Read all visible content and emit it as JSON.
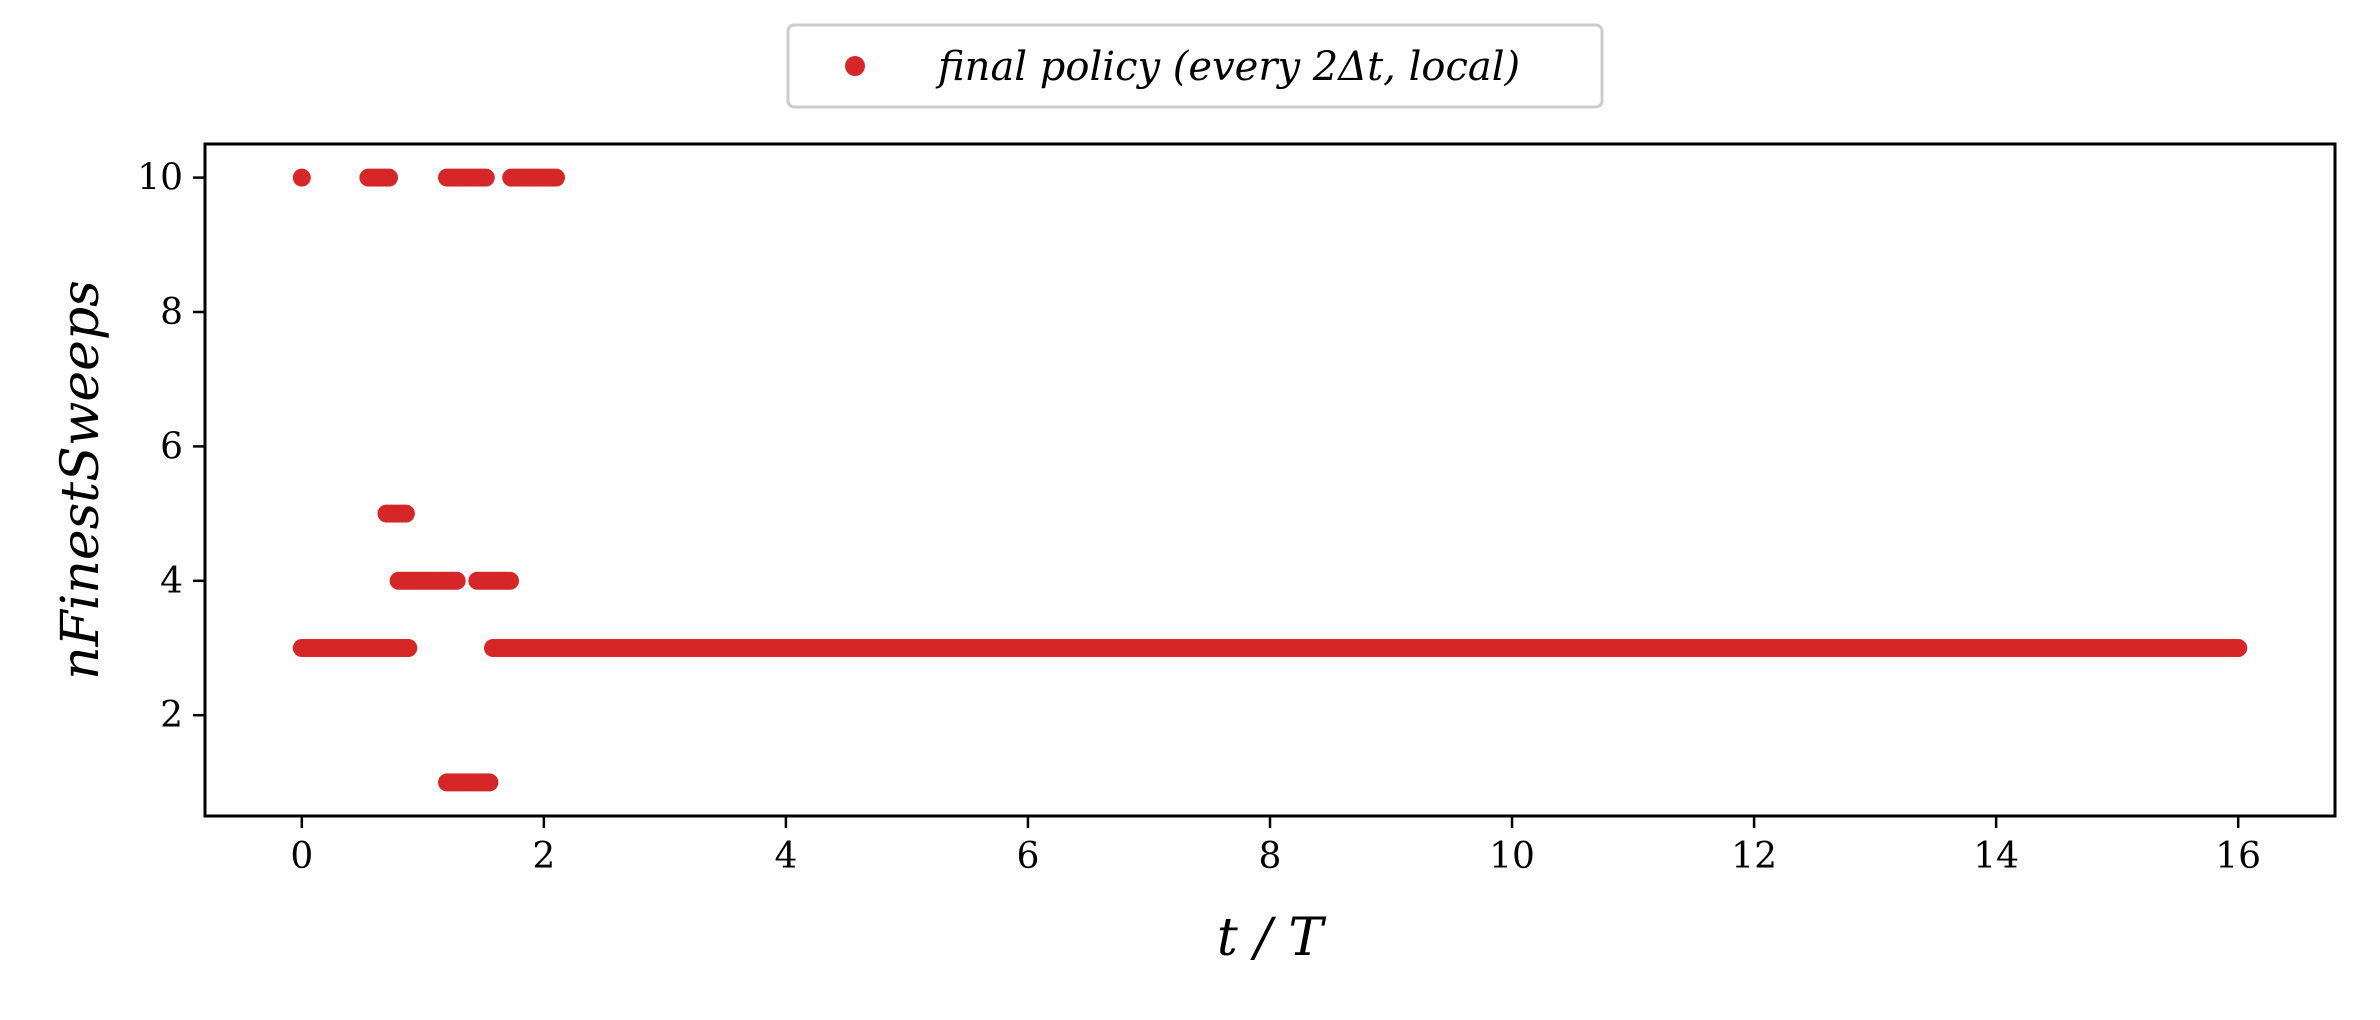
{
  "chart_data": {
    "type": "scatter",
    "xlabel": "t / T",
    "ylabel": "nFinestSweeps",
    "xlim": [
      -0.8,
      16.8
    ],
    "ylim": [
      0.5,
      10.5
    ],
    "xticks": [
      0,
      2,
      4,
      6,
      8,
      10,
      12,
      14,
      16
    ],
    "yticks": [
      2,
      4,
      6,
      8,
      10
    ],
    "grid": false,
    "legend_position": "top-center",
    "series": [
      {
        "name": "final policy (every 2Δt, local)",
        "color": "#d62728",
        "segments": [
          {
            "y": 10,
            "x_from": 0.0,
            "x_to": 0.0
          },
          {
            "y": 10,
            "x_from": 0.55,
            "x_to": 0.72
          },
          {
            "y": 10,
            "x_from": 1.2,
            "x_to": 1.52
          },
          {
            "y": 10,
            "x_from": 1.73,
            "x_to": 2.1
          },
          {
            "y": 5,
            "x_from": 0.7,
            "x_to": 0.86
          },
          {
            "y": 4,
            "x_from": 0.8,
            "x_to": 1.28
          },
          {
            "y": 4,
            "x_from": 1.45,
            "x_to": 1.72
          },
          {
            "y": 3,
            "x_from": 0.0,
            "x_to": 0.88
          },
          {
            "y": 3,
            "x_from": 1.58,
            "x_to": 16.0
          },
          {
            "y": 1,
            "x_from": 1.2,
            "x_to": 1.55
          }
        ]
      }
    ]
  }
}
